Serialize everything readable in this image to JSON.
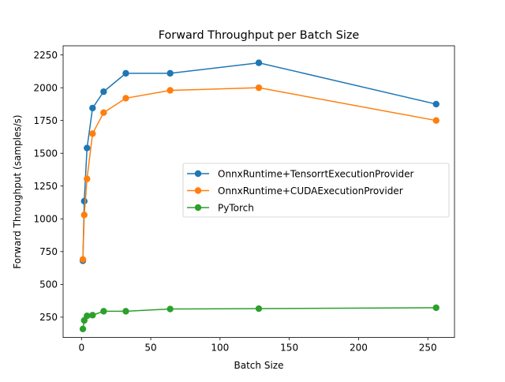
{
  "chart_data": {
    "type": "line",
    "title": "Forward Throughput per Batch Size",
    "xlabel": "Batch Size",
    "ylabel": "Forward Throughput (samples/s)",
    "xlim": [
      -13.25,
      269.25
    ],
    "ylim": [
      95,
      2320
    ],
    "x_ticks": [
      0,
      50,
      100,
      150,
      200,
      250
    ],
    "y_ticks": [
      250,
      500,
      750,
      1000,
      1250,
      1500,
      1750,
      2000,
      2250
    ],
    "legend_position": "center-right",
    "grid": false,
    "x": [
      1,
      2,
      4,
      8,
      16,
      32,
      64,
      128,
      256
    ],
    "series": [
      {
        "name": "OnnxRuntime+TensorrtExecutionProvider",
        "color": "#1f77b4",
        "values": [
          680,
          1135,
          1540,
          1845,
          1970,
          2110,
          2110,
          2190,
          1875
        ]
      },
      {
        "name": "OnnxRuntime+CUDAExecutionProvider",
        "color": "#ff7f0e",
        "values": [
          690,
          1030,
          1305,
          1650,
          1810,
          1920,
          1980,
          2000,
          1750
        ]
      },
      {
        "name": "PyTorch",
        "color": "#2ca02c",
        "values": [
          160,
          225,
          260,
          265,
          295,
          295,
          312,
          315,
          322
        ]
      }
    ]
  }
}
